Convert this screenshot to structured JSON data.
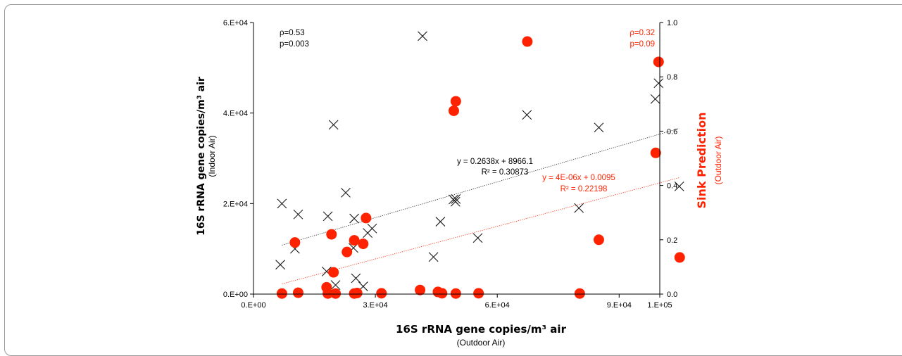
{
  "chart_data": {
    "type": "scatter",
    "x_axis": {
      "title": "16S rRNA gene copies/m³ air",
      "subtitle": "(Outdoor Air)",
      "range": [
        0,
        100000
      ],
      "tick_values": [
        0,
        30000,
        60000,
        90000,
        100000
      ],
      "tick_labels": [
        "0.E+00",
        "3.E+04",
        "6.E+04",
        "9.E+04",
        "1.E+05"
      ]
    },
    "y_axis_left": {
      "title": "16S rRNA gene copies/m³ air",
      "subtitle": "(Indoor Air)",
      "range": [
        0,
        60000
      ],
      "tick_values": [
        0,
        20000,
        40000,
        60000
      ],
      "tick_labels": [
        "0.E+00",
        "2.E+04",
        "4.E+04",
        "6.E+04"
      ]
    },
    "y_axis_right": {
      "title": "Sink Prediction",
      "subtitle": "(Outdoor Air)",
      "color": "#ff2200",
      "range": [
        0,
        1
      ],
      "tick_values": [
        0,
        0.2,
        0.4,
        0.6,
        0.8,
        1.0
      ],
      "tick_labels": [
        "0.0",
        "0.2",
        "0.4",
        "0.6",
        "0.8",
        "1.0"
      ]
    },
    "series": [
      {
        "marker": "x",
        "color": "#1a1a1a",
        "axis": "left",
        "points": [
          [
            6600,
            6500
          ],
          [
            7000,
            20000
          ],
          [
            10200,
            10000
          ],
          [
            11000,
            17600
          ],
          [
            18000,
            5000
          ],
          [
            18300,
            17200
          ],
          [
            19700,
            37400
          ],
          [
            20200,
            2000
          ],
          [
            22700,
            22400
          ],
          [
            24600,
            10200
          ],
          [
            24800,
            16700
          ],
          [
            25200,
            3500
          ],
          [
            27000,
            1700
          ],
          [
            28100,
            13500
          ],
          [
            29200,
            14500
          ],
          [
            41600,
            57000
          ],
          [
            44300,
            8200
          ],
          [
            46000,
            16000
          ],
          [
            49200,
            20900
          ],
          [
            49700,
            20400
          ],
          [
            49800,
            21000
          ],
          [
            55200,
            12400
          ],
          [
            67300,
            39600
          ],
          [
            80100,
            19000
          ],
          [
            85000,
            36800
          ],
          [
            98900,
            43100
          ],
          [
            99700,
            46600
          ],
          [
            104800,
            23800
          ]
        ]
      },
      {
        "marker": "circle",
        "color": "#ff2200",
        "axis": "right",
        "points": [
          [
            7000,
            0.002
          ],
          [
            10200,
            0.19
          ],
          [
            11000,
            0.005
          ],
          [
            18000,
            0.025
          ],
          [
            18300,
            0.002
          ],
          [
            19200,
            0.22
          ],
          [
            19700,
            0.08
          ],
          [
            20200,
            0.002
          ],
          [
            23000,
            0.155
          ],
          [
            24800,
            0.198
          ],
          [
            24800,
            0.002
          ],
          [
            25500,
            0.004
          ],
          [
            27000,
            0.185
          ],
          [
            27700,
            0.28
          ],
          [
            31500,
            0.003
          ],
          [
            41000,
            0.015
          ],
          [
            45400,
            0.008
          ],
          [
            46400,
            0.003
          ],
          [
            49300,
            0.675
          ],
          [
            49800,
            0.71
          ],
          [
            49800,
            0.002
          ],
          [
            55400,
            0.003
          ],
          [
            67400,
            0.93
          ],
          [
            80300,
            0.002
          ],
          [
            85000,
            0.2
          ],
          [
            99000,
            0.52
          ],
          [
            99700,
            0.855
          ],
          [
            104900,
            0.135
          ]
        ]
      }
    ],
    "trendlines": [
      {
        "series": 0,
        "color": "#1a1a1a",
        "x_range": [
          7000,
          104800
        ],
        "equation": "y = 0.2638x + 8966.1",
        "r2": "R² = 0.30873",
        "slope": 0.2638,
        "intercept": 8966.1
      },
      {
        "series": 1,
        "color": "#ff2200",
        "x_range": [
          7000,
          104900
        ],
        "equation": "y = 4E-06x + 0.0095",
        "r2": "R² = 0.22198",
        "slope": 4e-06,
        "intercept": 0.0095
      }
    ],
    "annotations": {
      "left_rho": "ρ=0.53",
      "left_p": "p=0.003",
      "right_rho": "ρ=0.32",
      "right_p": "p=0.09"
    }
  }
}
